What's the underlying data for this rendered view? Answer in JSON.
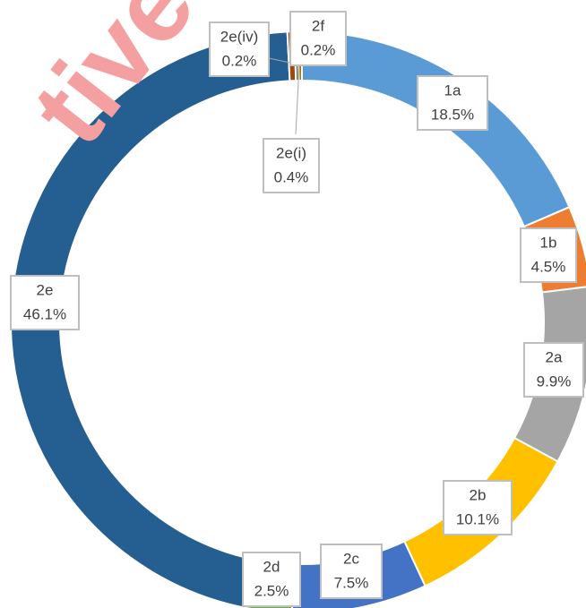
{
  "chart_data": {
    "type": "donut",
    "categories": [
      "1a",
      "1b",
      "2a",
      "2b",
      "2c",
      "2d",
      "2e",
      "2e(i)",
      "2e(iv)",
      "2f"
    ],
    "values": [
      18.5,
      4.5,
      9.9,
      10.1,
      7.5,
      2.5,
      46.1,
      0.4,
      0.2,
      0.2
    ],
    "value_labels": [
      "18.5%",
      "4.5%",
      "9.9%",
      "10.1%",
      "7.5%",
      "2.5%",
      "46.1%",
      "0.4%",
      "0.2%",
      "0.2%"
    ],
    "colors": [
      "#5b9bd5",
      "#ed7d31",
      "#a5a5a5",
      "#ffc000",
      "#4472c4",
      "#70ad47",
      "#255e91",
      "#9e480e",
      "#636363",
      "#997300"
    ],
    "annotations": [
      "tive"
    ]
  }
}
